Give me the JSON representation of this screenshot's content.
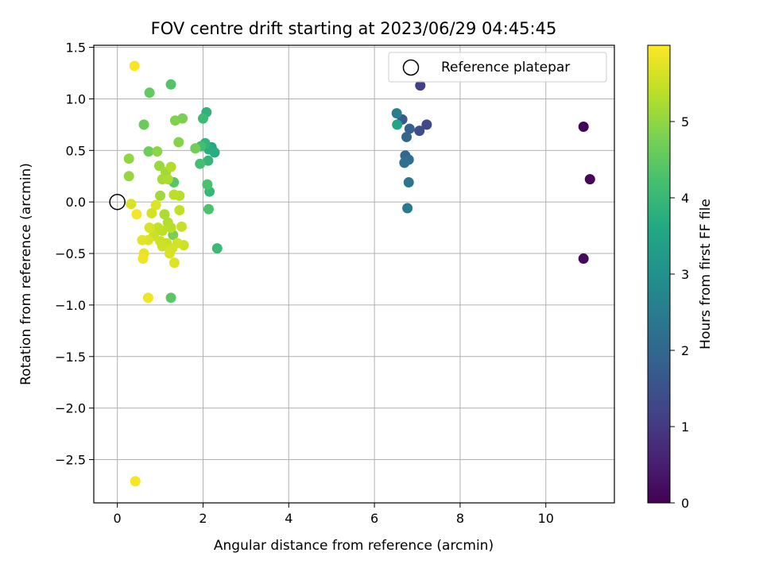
{
  "chart_data": {
    "type": "scatter",
    "title": "FOV centre drift starting at 2023/06/29 04:45:45",
    "xlabel": "Angular distance from reference (arcmin)",
    "ylabel": "Rotation from reference (arcmin)",
    "xlim": [
      -0.55,
      11.6
    ],
    "ylim": [
      -2.92,
      1.52
    ],
    "x_ticks": [
      0,
      2,
      4,
      6,
      8,
      10
    ],
    "y_ticks": [
      1.5,
      1.0,
      0.5,
      0.0,
      -0.5,
      -1.0,
      -1.5,
      -2.0,
      -2.5
    ],
    "x_tick_labels": [
      "0",
      "2",
      "4",
      "6",
      "8",
      "10"
    ],
    "y_tick_labels": [
      "1.5",
      "1.0",
      "0.5",
      "0.0",
      "−0.5",
      "−1.0",
      "−1.5",
      "−2.0",
      "−2.5"
    ],
    "grid": true,
    "colormap": "viridis",
    "colorbar": {
      "label": "Hours from first FF file",
      "range": [
        0,
        6
      ],
      "ticks": [
        0,
        1,
        2,
        3,
        4,
        5
      ],
      "tick_labels": [
        "0",
        "1",
        "2",
        "3",
        "4",
        "5"
      ]
    },
    "legend": {
      "position": "top-right",
      "label": "Reference platepar"
    },
    "reference_point": {
      "x": 0.0,
      "y": 0.0
    },
    "points": [
      {
        "x": 10.88,
        "y": 0.73,
        "hours": 0.05
      },
      {
        "x": 11.03,
        "y": 0.22,
        "hours": 0.1
      },
      {
        "x": 10.88,
        "y": -0.55,
        "hours": 0.15
      },
      {
        "x": 7.07,
        "y": 1.13,
        "hours": 1.15
      },
      {
        "x": 7.22,
        "y": 0.75,
        "hours": 1.3
      },
      {
        "x": 7.05,
        "y": 0.69,
        "hours": 1.4
      },
      {
        "x": 6.65,
        "y": 0.8,
        "hours": 1.7
      },
      {
        "x": 6.82,
        "y": 0.71,
        "hours": 1.85
      },
      {
        "x": 6.75,
        "y": 0.63,
        "hours": 2.0
      },
      {
        "x": 6.72,
        "y": 0.45,
        "hours": 2.05
      },
      {
        "x": 6.8,
        "y": 0.41,
        "hours": 2.15
      },
      {
        "x": 6.7,
        "y": 0.38,
        "hours": 2.2
      },
      {
        "x": 6.8,
        "y": 0.19,
        "hours": 2.35
      },
      {
        "x": 6.77,
        "y": -0.06,
        "hours": 2.45
      },
      {
        "x": 6.52,
        "y": 0.86,
        "hours": 2.55
      },
      {
        "x": 6.53,
        "y": 0.75,
        "hours": 3.5
      },
      {
        "x": 2.2,
        "y": 0.53,
        "hours": 3.6
      },
      {
        "x": 2.27,
        "y": 0.48,
        "hours": 3.7
      },
      {
        "x": 2.13,
        "y": 0.51,
        "hours": 3.75
      },
      {
        "x": 2.08,
        "y": 0.87,
        "hours": 3.85
      },
      {
        "x": 2.05,
        "y": 0.57,
        "hours": 3.9
      },
      {
        "x": 2.12,
        "y": 0.4,
        "hours": 3.95
      },
      {
        "x": 2.15,
        "y": 0.1,
        "hours": 4.0
      },
      {
        "x": 2.33,
        "y": -0.45,
        "hours": 4.05
      },
      {
        "x": 2.0,
        "y": 0.81,
        "hours": 4.1
      },
      {
        "x": 1.95,
        "y": 0.54,
        "hours": 4.15
      },
      {
        "x": 1.93,
        "y": 0.37,
        "hours": 4.2
      },
      {
        "x": 2.1,
        "y": 0.17,
        "hours": 4.25
      },
      {
        "x": 2.13,
        "y": -0.07,
        "hours": 4.3
      },
      {
        "x": 1.25,
        "y": 1.14,
        "hours": 4.35
      },
      {
        "x": 1.32,
        "y": 0.19,
        "hours": 4.4
      },
      {
        "x": 1.25,
        "y": -0.93,
        "hours": 4.45
      },
      {
        "x": 0.75,
        "y": 1.06,
        "hours": 4.55
      },
      {
        "x": 0.62,
        "y": 0.75,
        "hours": 4.6
      },
      {
        "x": 0.73,
        "y": 0.49,
        "hours": 4.65
      },
      {
        "x": 1.82,
        "y": 0.52,
        "hours": 4.7
      },
      {
        "x": 1.3,
        "y": -0.32,
        "hours": 4.75
      },
      {
        "x": 1.52,
        "y": 0.81,
        "hours": 4.8
      },
      {
        "x": 1.35,
        "y": 0.79,
        "hours": 4.85
      },
      {
        "x": 1.43,
        "y": 0.58,
        "hours": 4.9
      },
      {
        "x": 0.93,
        "y": 0.49,
        "hours": 4.95
      },
      {
        "x": 0.27,
        "y": 0.42,
        "hours": 5.0
      },
      {
        "x": 0.27,
        "y": 0.25,
        "hours": 5.05
      },
      {
        "x": 0.98,
        "y": 0.35,
        "hours": 5.1
      },
      {
        "x": 1.13,
        "y": 0.29,
        "hours": 5.15
      },
      {
        "x": 1.05,
        "y": 0.22,
        "hours": 5.2
      },
      {
        "x": 1.18,
        "y": 0.22,
        "hours": 5.25
      },
      {
        "x": 1.25,
        "y": 0.34,
        "hours": 5.3
      },
      {
        "x": 1.45,
        "y": 0.06,
        "hours": 5.35
      },
      {
        "x": 1.32,
        "y": 0.07,
        "hours": 5.4
      },
      {
        "x": 1.45,
        "y": -0.08,
        "hours": 5.45
      },
      {
        "x": 1.5,
        "y": -0.24,
        "hours": 5.5
      },
      {
        "x": 1.55,
        "y": -0.42,
        "hours": 5.55
      },
      {
        "x": 1.4,
        "y": -0.4,
        "hours": 5.6
      },
      {
        "x": 0.32,
        "y": -0.02,
        "hours": 5.65
      },
      {
        "x": 0.9,
        "y": -0.03,
        "hours": 5.7
      },
      {
        "x": 1.0,
        "y": 0.06,
        "hours": 5.15
      },
      {
        "x": 1.1,
        "y": -0.12,
        "hours": 5.25
      },
      {
        "x": 1.18,
        "y": -0.2,
        "hours": 5.3
      },
      {
        "x": 1.25,
        "y": -0.25,
        "hours": 5.35
      },
      {
        "x": 1.05,
        "y": -0.28,
        "hours": 5.4
      },
      {
        "x": 0.95,
        "y": -0.25,
        "hours": 5.45
      },
      {
        "x": 0.85,
        "y": -0.33,
        "hours": 5.5
      },
      {
        "x": 1.0,
        "y": -0.38,
        "hours": 5.55
      },
      {
        "x": 1.15,
        "y": -0.4,
        "hours": 5.5
      },
      {
        "x": 1.28,
        "y": -0.45,
        "hours": 5.6
      },
      {
        "x": 1.22,
        "y": -0.5,
        "hours": 5.65
      },
      {
        "x": 1.05,
        "y": -0.43,
        "hours": 5.55
      },
      {
        "x": 1.33,
        "y": -0.59,
        "hours": 5.7
      },
      {
        "x": 0.8,
        "y": -0.11,
        "hours": 5.6
      },
      {
        "x": 0.75,
        "y": -0.25,
        "hours": 5.65
      },
      {
        "x": 0.72,
        "y": -0.37,
        "hours": 5.7
      },
      {
        "x": 0.58,
        "y": -0.37,
        "hours": 5.75
      },
      {
        "x": 0.62,
        "y": -0.5,
        "hours": 5.8
      },
      {
        "x": 0.6,
        "y": -0.55,
        "hours": 5.85
      },
      {
        "x": 0.45,
        "y": -0.12,
        "hours": 5.9
      },
      {
        "x": 0.72,
        "y": -0.93,
        "hours": 5.85
      },
      {
        "x": 0.4,
        "y": 1.32,
        "hours": 5.95
      },
      {
        "x": 0.42,
        "y": -2.71,
        "hours": 5.95
      }
    ]
  }
}
